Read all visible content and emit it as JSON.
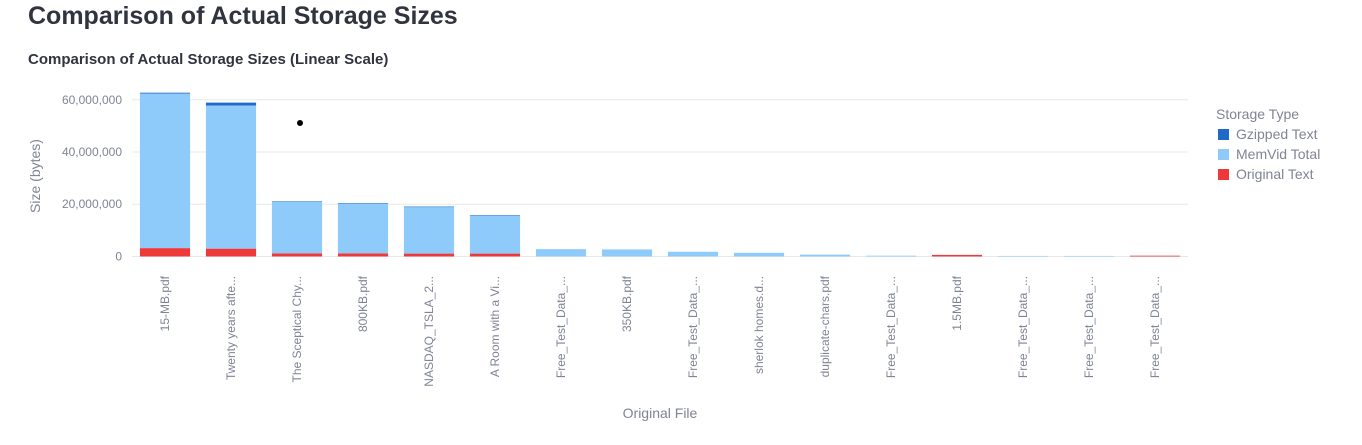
{
  "page": {
    "title": "Comparison of Actual Storage Sizes"
  },
  "chart_data": {
    "type": "bar",
    "stacked": true,
    "title": "Comparison of Actual Storage Sizes (Linear Scale)",
    "xlabel": "Original File",
    "ylabel": "Size (bytes)",
    "ylim": [
      -2500000,
      64500000
    ],
    "yticks": [
      0,
      20000000,
      40000000,
      60000000
    ],
    "ytick_labels": [
      "0",
      "20,000,000",
      "40,000,000",
      "60,000,000"
    ],
    "grid": true,
    "legend_title": "Storage Type",
    "legend_position": "right",
    "categories": [
      "15-MB.pdf",
      "Twenty years afte...",
      "The Sceptical Chy...",
      "800KB.pdf",
      "NASDAQ_TSLA_2...",
      "A Room with a Vi...",
      "Free_Test_Data_...",
      "350KB.pdf",
      "Free_Test_Data_...",
      "sherlok homes.d...",
      "duplicate-chars.pdf",
      "Free_Test_Data_...",
      "1.5MB.pdf",
      "Free_Test_Data_...",
      "Free_Test_Data_...",
      "Free_Test_Data_..."
    ],
    "series": [
      {
        "name": "Original Text",
        "color": "#ef3838",
        "values": [
          3200000,
          3000000,
          1200000,
          1200000,
          1100000,
          1100000,
          0,
          0,
          0,
          0,
          0,
          0,
          600000,
          0,
          0,
          300000
        ]
      },
      {
        "name": "MemVid Total",
        "color": "#8ecbfb",
        "values": [
          59200000,
          54800000,
          19700000,
          19100000,
          17900000,
          14600000,
          2800000,
          2700000,
          1800000,
          1400000,
          700000,
          300000,
          0,
          200000,
          200000,
          0
        ]
      },
      {
        "name": "Gzipped Text",
        "color": "#1f69c7",
        "values": [
          300000,
          1100000,
          200000,
          100000,
          100000,
          100000,
          0,
          0,
          0,
          0,
          0,
          0,
          0,
          0,
          0,
          0
        ]
      }
    ],
    "legend_order": [
      "Gzipped Text",
      "MemVid Total",
      "Original Text"
    ]
  }
}
